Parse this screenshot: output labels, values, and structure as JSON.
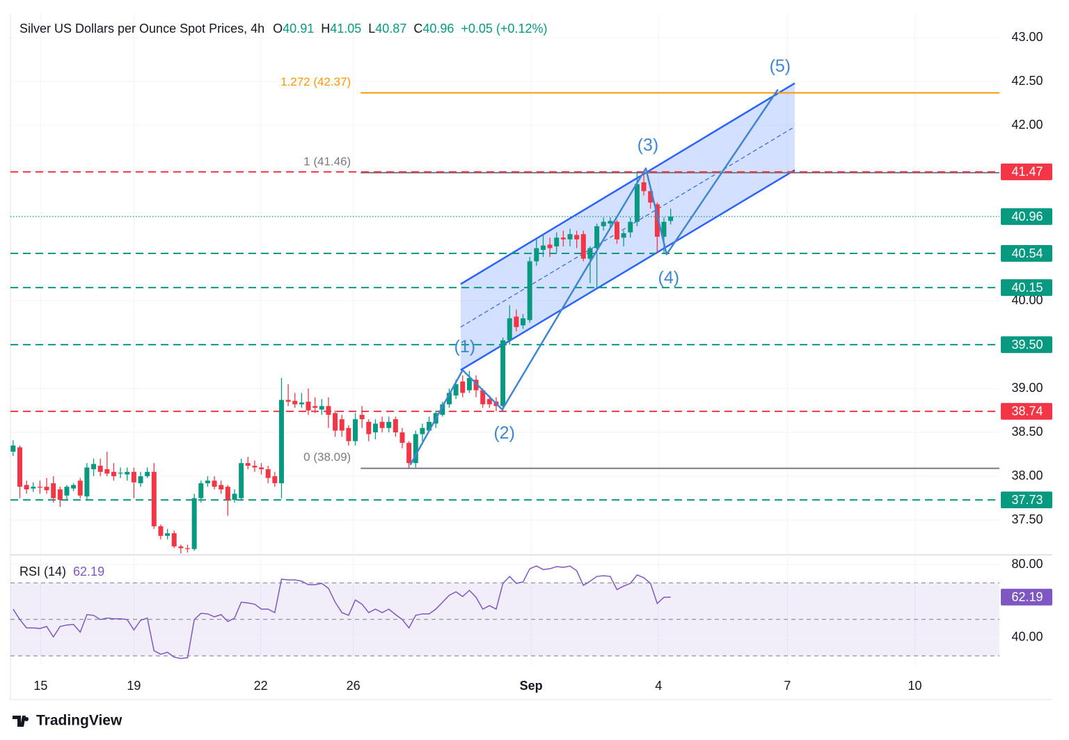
{
  "chart_data": [
    {
      "type": "candlestick",
      "title": "Silver US Dollars per Ounce Spot Prices, 4h",
      "ohlc_labels": [
        "O",
        "H",
        "L",
        "C"
      ],
      "change": "+0.05 (+0.12%)",
      "up_color": "#089981",
      "down_color": "#f23645",
      "xlim": [
        -0.4,
        147
      ],
      "xticks": [
        {
          "value": 4.1,
          "label": "15"
        },
        {
          "value": 18.0,
          "label": "19"
        },
        {
          "value": 36.9,
          "label": "22"
        },
        {
          "value": 50.7,
          "label": "26"
        },
        {
          "value": 77.2,
          "label": "Sep"
        },
        {
          "value": 96.2,
          "label": "4"
        },
        {
          "value": 115.4,
          "label": "7"
        },
        {
          "value": 134.4,
          "label": "10"
        }
      ],
      "ylim": [
        37.12,
        43.27
      ],
      "yticks": [
        {
          "value": 37.5,
          "label": "37.50"
        },
        {
          "value": 38,
          "label": "38.00"
        },
        {
          "value": 38.5,
          "label": "38.50"
        },
        {
          "value": 39,
          "label": "39.00"
        },
        {
          "value": 40,
          "label": "40.00"
        },
        {
          "value": 42,
          "label": "42.00"
        },
        {
          "value": 42.5,
          "label": "42.50"
        },
        {
          "value": 43,
          "label": "43.00"
        }
      ],
      "grid": true,
      "open": [
        38.28,
        38.33,
        37.9,
        37.86,
        37.88,
        37.88,
        37.92,
        37.85,
        37.78,
        37.86,
        37.95,
        37.77,
        38.08,
        38.12,
        38.08,
        38.05,
        38.03,
        38.02,
        38.05,
        37.92,
        38.0,
        38.05,
        37.43,
        37.32,
        37.35,
        37.2,
        37.18,
        37.17,
        37.75,
        37.92,
        37.95,
        37.9,
        37.88,
        37.73,
        37.75,
        38.15,
        38.12,
        38.1,
        38.08,
        38.0,
        37.92,
        38.87,
        38.86,
        38.82,
        38.85,
        38.8,
        38.76,
        38.8,
        38.72,
        38.65,
        38.55,
        38.4,
        38.7,
        38.62,
        38.5,
        38.62,
        38.55,
        38.65,
        38.5,
        38.38,
        38.15,
        38.48,
        38.52,
        38.6,
        38.7,
        38.82,
        38.92,
        39.08,
        38.98,
        39.1,
        38.98,
        38.88,
        38.85,
        38.8,
        39.55,
        39.82,
        39.72,
        39.78,
        40.45,
        40.58,
        40.64,
        40.62,
        40.72,
        40.7,
        40.75,
        40.76,
        40.48,
        40.6,
        40.85,
        40.88,
        40.9,
        40.72,
        40.78,
        40.9,
        41.35,
        41.25,
        41.1,
        40.73,
        40.91
      ],
      "high": [
        38.41,
        38.35,
        37.95,
        37.93,
        37.95,
        37.98,
        38.0,
        37.88,
        37.9,
        37.92,
        37.98,
        38.15,
        38.2,
        38.2,
        38.28,
        38.15,
        38.1,
        38.1,
        38.1,
        38.05,
        38.1,
        38.15,
        37.45,
        37.4,
        37.38,
        37.22,
        37.22,
        37.8,
        37.95,
        38.0,
        38.0,
        37.95,
        37.9,
        37.85,
        38.2,
        38.22,
        38.18,
        38.15,
        38.12,
        38.05,
        39.12,
        39.05,
        38.95,
        38.95,
        39.0,
        38.9,
        38.88,
        38.9,
        38.75,
        38.7,
        38.58,
        38.72,
        38.8,
        38.65,
        38.65,
        38.68,
        38.68,
        38.68,
        38.55,
        38.4,
        38.52,
        38.6,
        38.68,
        38.75,
        38.85,
        39.0,
        39.1,
        39.15,
        39.2,
        39.15,
        39.0,
        38.92,
        38.9,
        39.58,
        39.95,
        39.9,
        39.85,
        40.5,
        40.7,
        40.75,
        40.72,
        40.78,
        40.8,
        40.82,
        40.8,
        40.8,
        40.62,
        40.88,
        40.95,
        40.95,
        40.92,
        40.8,
        40.95,
        41.47,
        41.47,
        41.3,
        41.12,
        40.95,
        41.05
      ],
      "low": [
        38.23,
        37.75,
        37.8,
        37.82,
        37.8,
        37.8,
        37.7,
        37.65,
        37.72,
        37.83,
        37.75,
        37.72,
        38.0,
        38.0,
        38.0,
        37.95,
        37.98,
        37.95,
        37.75,
        37.88,
        37.98,
        37.4,
        37.28,
        37.28,
        37.18,
        37.12,
        37.13,
        37.15,
        37.7,
        37.88,
        37.85,
        37.8,
        37.55,
        37.7,
        37.72,
        38.08,
        38.05,
        38.02,
        37.92,
        37.88,
        37.75,
        38.8,
        38.78,
        38.78,
        38.7,
        38.72,
        38.7,
        38.55,
        38.45,
        38.45,
        38.35,
        38.35,
        38.55,
        38.4,
        38.42,
        38.5,
        38.5,
        38.45,
        38.32,
        38.09,
        38.1,
        38.4,
        38.5,
        38.55,
        38.68,
        38.78,
        38.88,
        38.9,
        38.95,
        38.9,
        38.78,
        38.78,
        38.74,
        38.74,
        39.5,
        39.65,
        39.68,
        39.75,
        40.4,
        40.5,
        40.5,
        40.55,
        40.62,
        40.62,
        40.6,
        40.45,
        40.2,
        40.15,
        40.8,
        40.82,
        40.65,
        40.62,
        40.72,
        40.85,
        41.2,
        41.05,
        40.54,
        40.54,
        40.87
      ],
      "close": [
        38.35,
        37.88,
        37.85,
        37.88,
        37.87,
        37.84,
        37.75,
        37.73,
        37.88,
        37.9,
        37.78,
        38.1,
        38.14,
        38.05,
        38.03,
        38.0,
        38.04,
        38.05,
        37.93,
        38.0,
        38.05,
        37.43,
        37.32,
        37.35,
        37.2,
        37.18,
        37.17,
        37.75,
        37.92,
        37.95,
        37.88,
        37.85,
        37.73,
        37.8,
        38.15,
        38.12,
        38.1,
        38.08,
        37.98,
        37.92,
        38.87,
        38.85,
        38.82,
        38.84,
        38.75,
        38.78,
        38.8,
        38.7,
        38.52,
        38.52,
        38.4,
        38.65,
        38.65,
        38.48,
        38.6,
        38.55,
        38.62,
        38.5,
        38.38,
        38.15,
        38.48,
        38.55,
        38.62,
        38.72,
        38.82,
        38.95,
        39.05,
        38.95,
        39.12,
        38.98,
        38.82,
        38.82,
        38.8,
        39.55,
        39.8,
        39.7,
        39.8,
        40.45,
        40.6,
        40.63,
        40.6,
        40.72,
        40.7,
        40.76,
        40.7,
        40.48,
        40.6,
        40.85,
        40.9,
        40.91,
        40.7,
        40.77,
        40.9,
        41.33,
        41.25,
        41.12,
        40.73,
        40.9,
        40.96
      ],
      "levels": [
        {
          "value": 41.47,
          "color": "#f23645"
        },
        {
          "value": 40.54,
          "color": "#089981"
        },
        {
          "value": 40.15,
          "color": "#089981"
        },
        {
          "value": 39.5,
          "label": "39.50",
          "color": "#089981"
        },
        {
          "value": 38.74,
          "color": "#f23645"
        },
        {
          "value": 37.73,
          "color": "#089981"
        }
      ],
      "fib_from": 51.8,
      "fib": [
        {
          "label": "1.272 (42.37)",
          "value": 42.37,
          "color": "#ff9800"
        },
        {
          "label": "1 (41.46)",
          "value": 41.46,
          "color": "#787b86"
        },
        {
          "label": "0 (38.09)",
          "value": 38.09,
          "color": "#787b86"
        }
      ],
      "channel": {
        "x": [
          66.7,
          116.5
        ],
        "upper": [
          40.19,
          42.48
        ],
        "lower": [
          39.21,
          41.49
        ],
        "color": "#2962ff"
      },
      "waves": {
        "color": "#3f86d1",
        "x": [
          59.2,
          67.0,
          72.9,
          94.3,
          97.4,
          114.0
        ],
        "values": [
          38.13,
          39.21,
          38.76,
          41.51,
          40.53,
          42.41
        ],
        "labels": [
          null,
          "(1)",
          "(2)",
          "(3)",
          "(4)",
          "(5)"
        ]
      }
    },
    {
      "type": "line",
      "title": "RSI (14)",
      "color": "#7e57c2",
      "ylim": [
        25.1,
        84.2
      ],
      "yticks": [
        {
          "value": 80,
          "label": "80.00"
        },
        {
          "value": 40,
          "label": "40.00"
        }
      ],
      "levels": [
        70,
        50,
        30
      ],
      "band": [
        30,
        70
      ],
      "values": [
        55.6,
        49.9,
        45.3,
        45.3,
        45.0,
        46.1,
        40.4,
        46.1,
        46.9,
        47.2,
        43.0,
        52.6,
        52.2,
        49.9,
        50.7,
        50.3,
        50.3,
        49.9,
        44.2,
        49.5,
        50.7,
        32.8,
        30.9,
        32.0,
        29.3,
        28.6,
        29.0,
        49.9,
        53.3,
        53.0,
        51.4,
        52.6,
        48.8,
        50.7,
        59.4,
        59.0,
        58.3,
        55.6,
        55.6,
        53.7,
        72.0,
        71.6,
        71.6,
        70.9,
        69.0,
        69.0,
        69.7,
        67.0,
        59.4,
        53.7,
        52.2,
        60.6,
        58.3,
        53.7,
        55.6,
        53.7,
        55.6,
        52.6,
        49.9,
        45.3,
        52.2,
        53.0,
        53.0,
        55.6,
        59.4,
        63.2,
        65.1,
        62.5,
        65.9,
        62.1,
        55.6,
        57.5,
        55.6,
        69.7,
        73.5,
        69.7,
        70.5,
        77.7,
        79.2,
        77.3,
        77.7,
        78.9,
        78.5,
        79.2,
        76.6,
        68.6,
        70.9,
        73.5,
        73.9,
        73.5,
        66.3,
        68.2,
        69.7,
        74.3,
        72.8,
        69.7,
        58.7,
        62.1,
        62.19
      ]
    }
  ],
  "footer": "TradingView"
}
